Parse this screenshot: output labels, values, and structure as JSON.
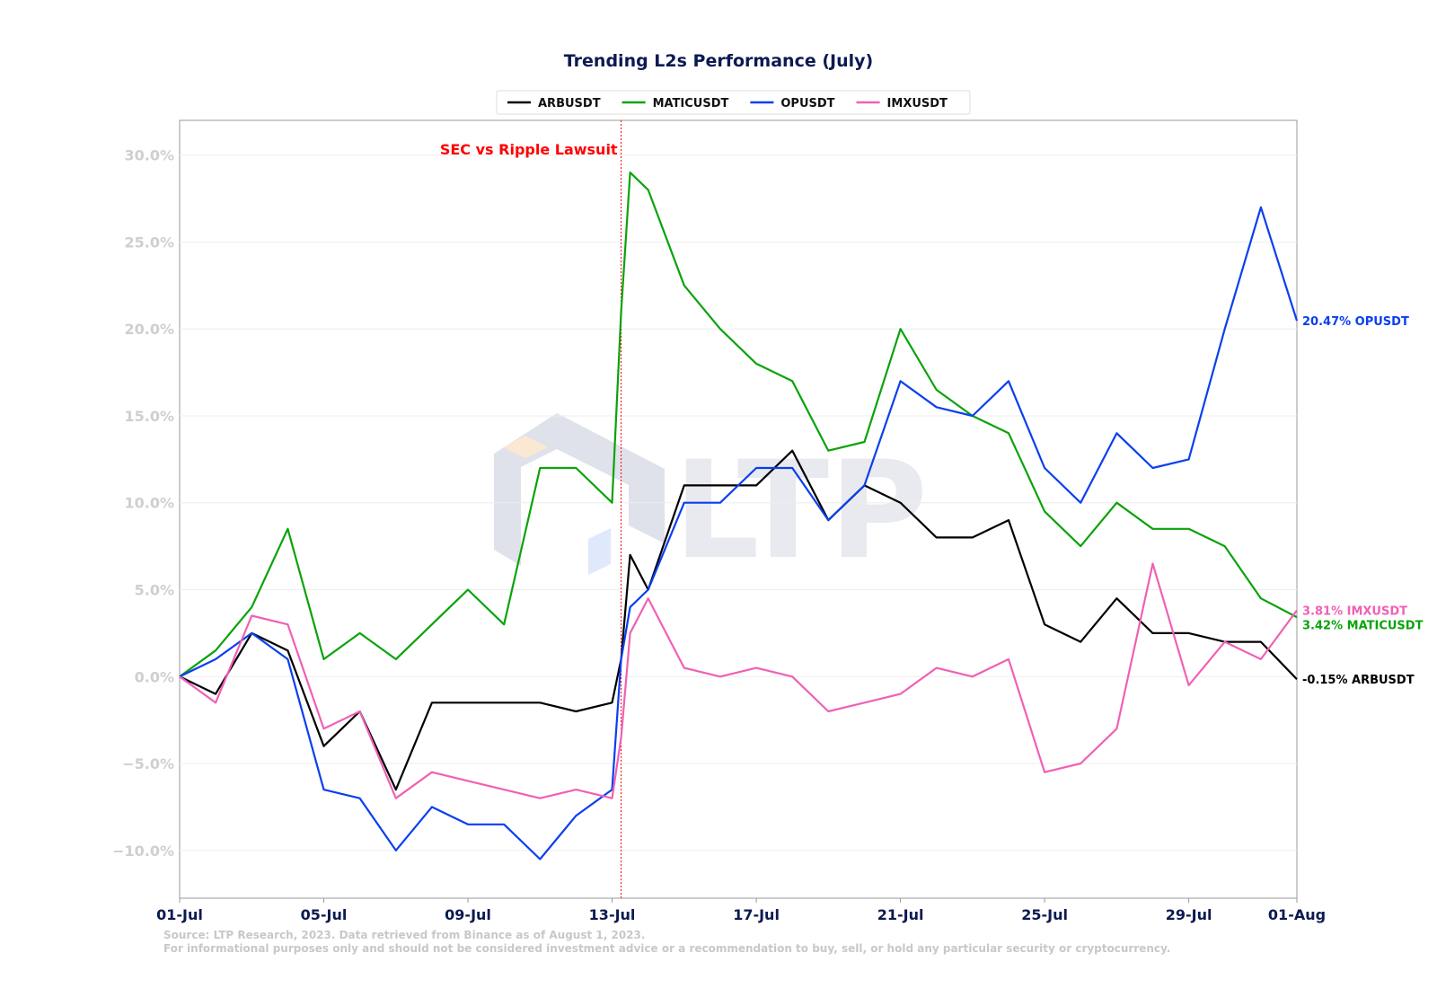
{
  "chart_data": {
    "type": "line",
    "title": "Trending L2s Performance (July)",
    "xlabel": "",
    "ylabel": "",
    "ylim": [
      -12.75,
      32
    ],
    "x_range": [
      "2023-07-01",
      "2023-08-01"
    ],
    "x_ticks": [
      "01-Jul",
      "05-Jul",
      "09-Jul",
      "13-Jul",
      "17-Jul",
      "21-Jul",
      "25-Jul",
      "29-Jul",
      "01-Aug"
    ],
    "y_ticks": [
      "−10.0%",
      "−5.0%",
      "0.0%",
      "5.0%",
      "10.0%",
      "15.0%",
      "20.0%",
      "25.0%",
      "30.0%"
    ],
    "y_tick_values": [
      -10,
      -5,
      0,
      5,
      10,
      15,
      20,
      25,
      30
    ],
    "grid": true,
    "legend_position": "top-center",
    "annotation": {
      "label": "SEC vs Ripple Lawsuit",
      "x": "2023-07-13T06:00"
    },
    "source_lines": [
      "Source: LTP Research, 2023. Data retrieved from Binance as of August 1, 2023.",
      "For informational purposes only and should not be considered investment advice or a recommendation to buy, sell, or hold any particular security or cryptocurrency."
    ],
    "watermark": "LTP",
    "x": [
      "07-01",
      "07-02",
      "07-03",
      "07-04",
      "07-05",
      "07-06",
      "07-07",
      "07-08",
      "07-09",
      "07-10",
      "07-11",
      "07-12",
      "07-13",
      "07-13 06:00",
      "07-13 12:00",
      "07-14",
      "07-15",
      "07-16",
      "07-17",
      "07-18",
      "07-19",
      "07-20",
      "07-21",
      "07-22",
      "07-23",
      "07-24",
      "07-25",
      "07-26",
      "07-27",
      "07-28",
      "07-29",
      "07-30",
      "07-31",
      "08-01"
    ],
    "series": [
      {
        "name": "ARBUSDT",
        "color": "#000000",
        "end_label": "-0.15% ARBUSDT",
        "values": [
          0.0,
          -1.0,
          2.5,
          1.5,
          -4.0,
          -2.0,
          -6.5,
          -1.5,
          -1.5,
          -1.5,
          -1.5,
          -2.0,
          -1.5,
          1.0,
          7.0,
          5.0,
          11.0,
          11.0,
          11.0,
          13.0,
          9.0,
          11.0,
          10.0,
          8.0,
          8.0,
          9.0,
          3.0,
          2.0,
          4.5,
          2.5,
          2.5,
          2.0,
          2.0,
          -0.15
        ]
      },
      {
        "name": "MATICUSDT",
        "color": "#0aa30a",
        "end_label": "3.42% MATICUSDT",
        "values": [
          0.0,
          1.5,
          4.0,
          8.5,
          1.0,
          2.5,
          1.0,
          3.0,
          5.0,
          3.0,
          12.0,
          12.0,
          10.0,
          21.0,
          29.0,
          28.0,
          22.5,
          20.0,
          18.0,
          17.0,
          13.0,
          13.5,
          20.0,
          16.5,
          15.0,
          14.0,
          9.5,
          7.5,
          10.0,
          8.5,
          8.5,
          7.5,
          4.5,
          3.42
        ]
      },
      {
        "name": "OPUSDT",
        "color": "#0a3ff0",
        "end_label": "20.47% OPUSDT",
        "values": [
          0.0,
          1.0,
          2.5,
          1.0,
          -6.5,
          -7.0,
          -10.0,
          -7.5,
          -8.5,
          -8.5,
          -10.5,
          -8.0,
          -6.5,
          1.0,
          4.0,
          5.0,
          10.0,
          10.0,
          12.0,
          12.0,
          9.0,
          11.0,
          17.0,
          15.5,
          15.0,
          17.0,
          12.0,
          10.0,
          14.0,
          12.0,
          12.5,
          20.0,
          27.0,
          20.47
        ]
      },
      {
        "name": "IMXUSDT",
        "color": "#f060b4",
        "end_label": "3.81% IMXUSDT",
        "values": [
          0.0,
          -1.5,
          3.5,
          3.0,
          -3.0,
          -2.0,
          -7.0,
          -5.5,
          -6.0,
          -6.5,
          -7.0,
          -6.5,
          -7.0,
          -3.5,
          2.5,
          4.5,
          0.5,
          0.0,
          0.5,
          0.0,
          -2.0,
          -1.5,
          -1.0,
          0.5,
          0.0,
          1.0,
          -5.5,
          -5.0,
          -3.0,
          6.5,
          -0.5,
          2.0,
          1.0,
          3.81
        ]
      }
    ]
  }
}
